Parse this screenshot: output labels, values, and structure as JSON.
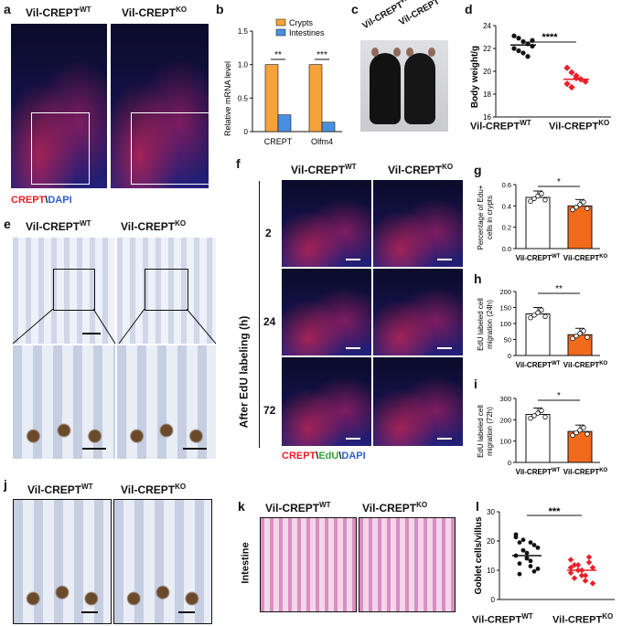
{
  "labels": {
    "a": "a",
    "b": "b",
    "c": "c",
    "d": "d",
    "e": "e",
    "f": "f",
    "g": "g",
    "h": "h",
    "i": "i",
    "j": "j",
    "k": "k",
    "l": "l"
  },
  "groups": {
    "wt": "Vil-CREPT",
    "ko": "Vil-CREPT",
    "wt_sup": "WT",
    "ko_sup": "KO"
  },
  "panel_a": {
    "stain_crept": "CREPT",
    "stain_sep": "\\",
    "stain_dapi": "DAPI"
  },
  "panel_f": {
    "row_title": "After EdU labeling (h)",
    "rows": [
      "2",
      "24",
      "72"
    ],
    "stain_crept": "CREPT",
    "stain_sep1": "\\",
    "stain_edu": "EdU",
    "stain_sep2": "\\",
    "stain_dapi": "DAPI"
  },
  "panel_k": {
    "row_label": "Intestine"
  },
  "colors": {
    "crypts": "#f5a23a",
    "intestines": "#4a90e2",
    "ko_red": "#e8202a",
    "ko_bar": "#f26a1b"
  },
  "chart_data": [
    {
      "id": "b",
      "type": "bar",
      "categories": [
        "CREPT",
        "Olfm4"
      ],
      "series": [
        {
          "name": "Crypts",
          "values": [
            1.0,
            1.0
          ]
        },
        {
          "name": "Intestines",
          "values": [
            0.25,
            0.14
          ]
        }
      ],
      "ylabel": "Relative mRNA level",
      "ylim": [
        0,
        1.5
      ],
      "yticks": [
        "0",
        "0.5",
        "1.0",
        "1.5"
      ],
      "significance": [
        "**",
        "***"
      ],
      "legend": "top"
    },
    {
      "id": "d",
      "type": "scatter",
      "categories": [
        "Vil-CREPT WT",
        "Vil-CREPT KO"
      ],
      "values": [
        22.3,
        19.3
      ],
      "ylabel": "Body weight/g",
      "ylim": [
        16,
        24
      ],
      "yticks": [
        "16",
        "18",
        "20",
        "22",
        "24"
      ],
      "significance": "****",
      "points": [
        [
          23.1,
          22.9,
          22.6,
          22.4,
          22.2,
          22.0,
          21.8,
          21.6,
          21.3,
          22.7
        ],
        [
          20.3,
          19.9,
          19.6,
          19.3,
          19.1,
          18.9,
          18.6,
          19.4
        ]
      ]
    },
    {
      "id": "g",
      "type": "bar",
      "categories": [
        "Vil-CREPT WT",
        "Vil-CREPT KO"
      ],
      "values": [
        0.48,
        0.4
      ],
      "ylabel": "Percentage of Edu+ cells in crypts",
      "ylim": [
        0,
        0.6
      ],
      "yticks": [
        "0.0",
        "0.2",
        "0.4",
        "0.6"
      ],
      "significance": "*"
    },
    {
      "id": "h",
      "type": "bar",
      "categories": [
        "Vil-CREPT WT",
        "Vil-CREPT KO"
      ],
      "values": [
        130,
        65
      ],
      "ylabel": "EdU labeled cell migration (24h)",
      "ylim": [
        0,
        200
      ],
      "yticks": [
        "0",
        "50",
        "100",
        "150",
        "200"
      ],
      "significance": "**"
    },
    {
      "id": "i",
      "type": "bar",
      "categories": [
        "Vil-CREPT WT",
        "Vil-CREPT KO"
      ],
      "values": [
        225,
        145
      ],
      "ylabel": "EdU labeled cell migration (72h)",
      "ylim": [
        0,
        300
      ],
      "yticks": [
        "0",
        "100",
        "200",
        "300"
      ],
      "significance": "*"
    },
    {
      "id": "l",
      "type": "scatter",
      "categories": [
        "Vil-CREPT WT",
        "Vil-CREPT KO"
      ],
      "values": [
        15,
        10
      ],
      "ylabel": "Goblet cells/villus",
      "ylim": [
        0,
        30
      ],
      "yticks": [
        "0",
        "10",
        "20",
        "30"
      ],
      "significance": "***"
    }
  ]
}
